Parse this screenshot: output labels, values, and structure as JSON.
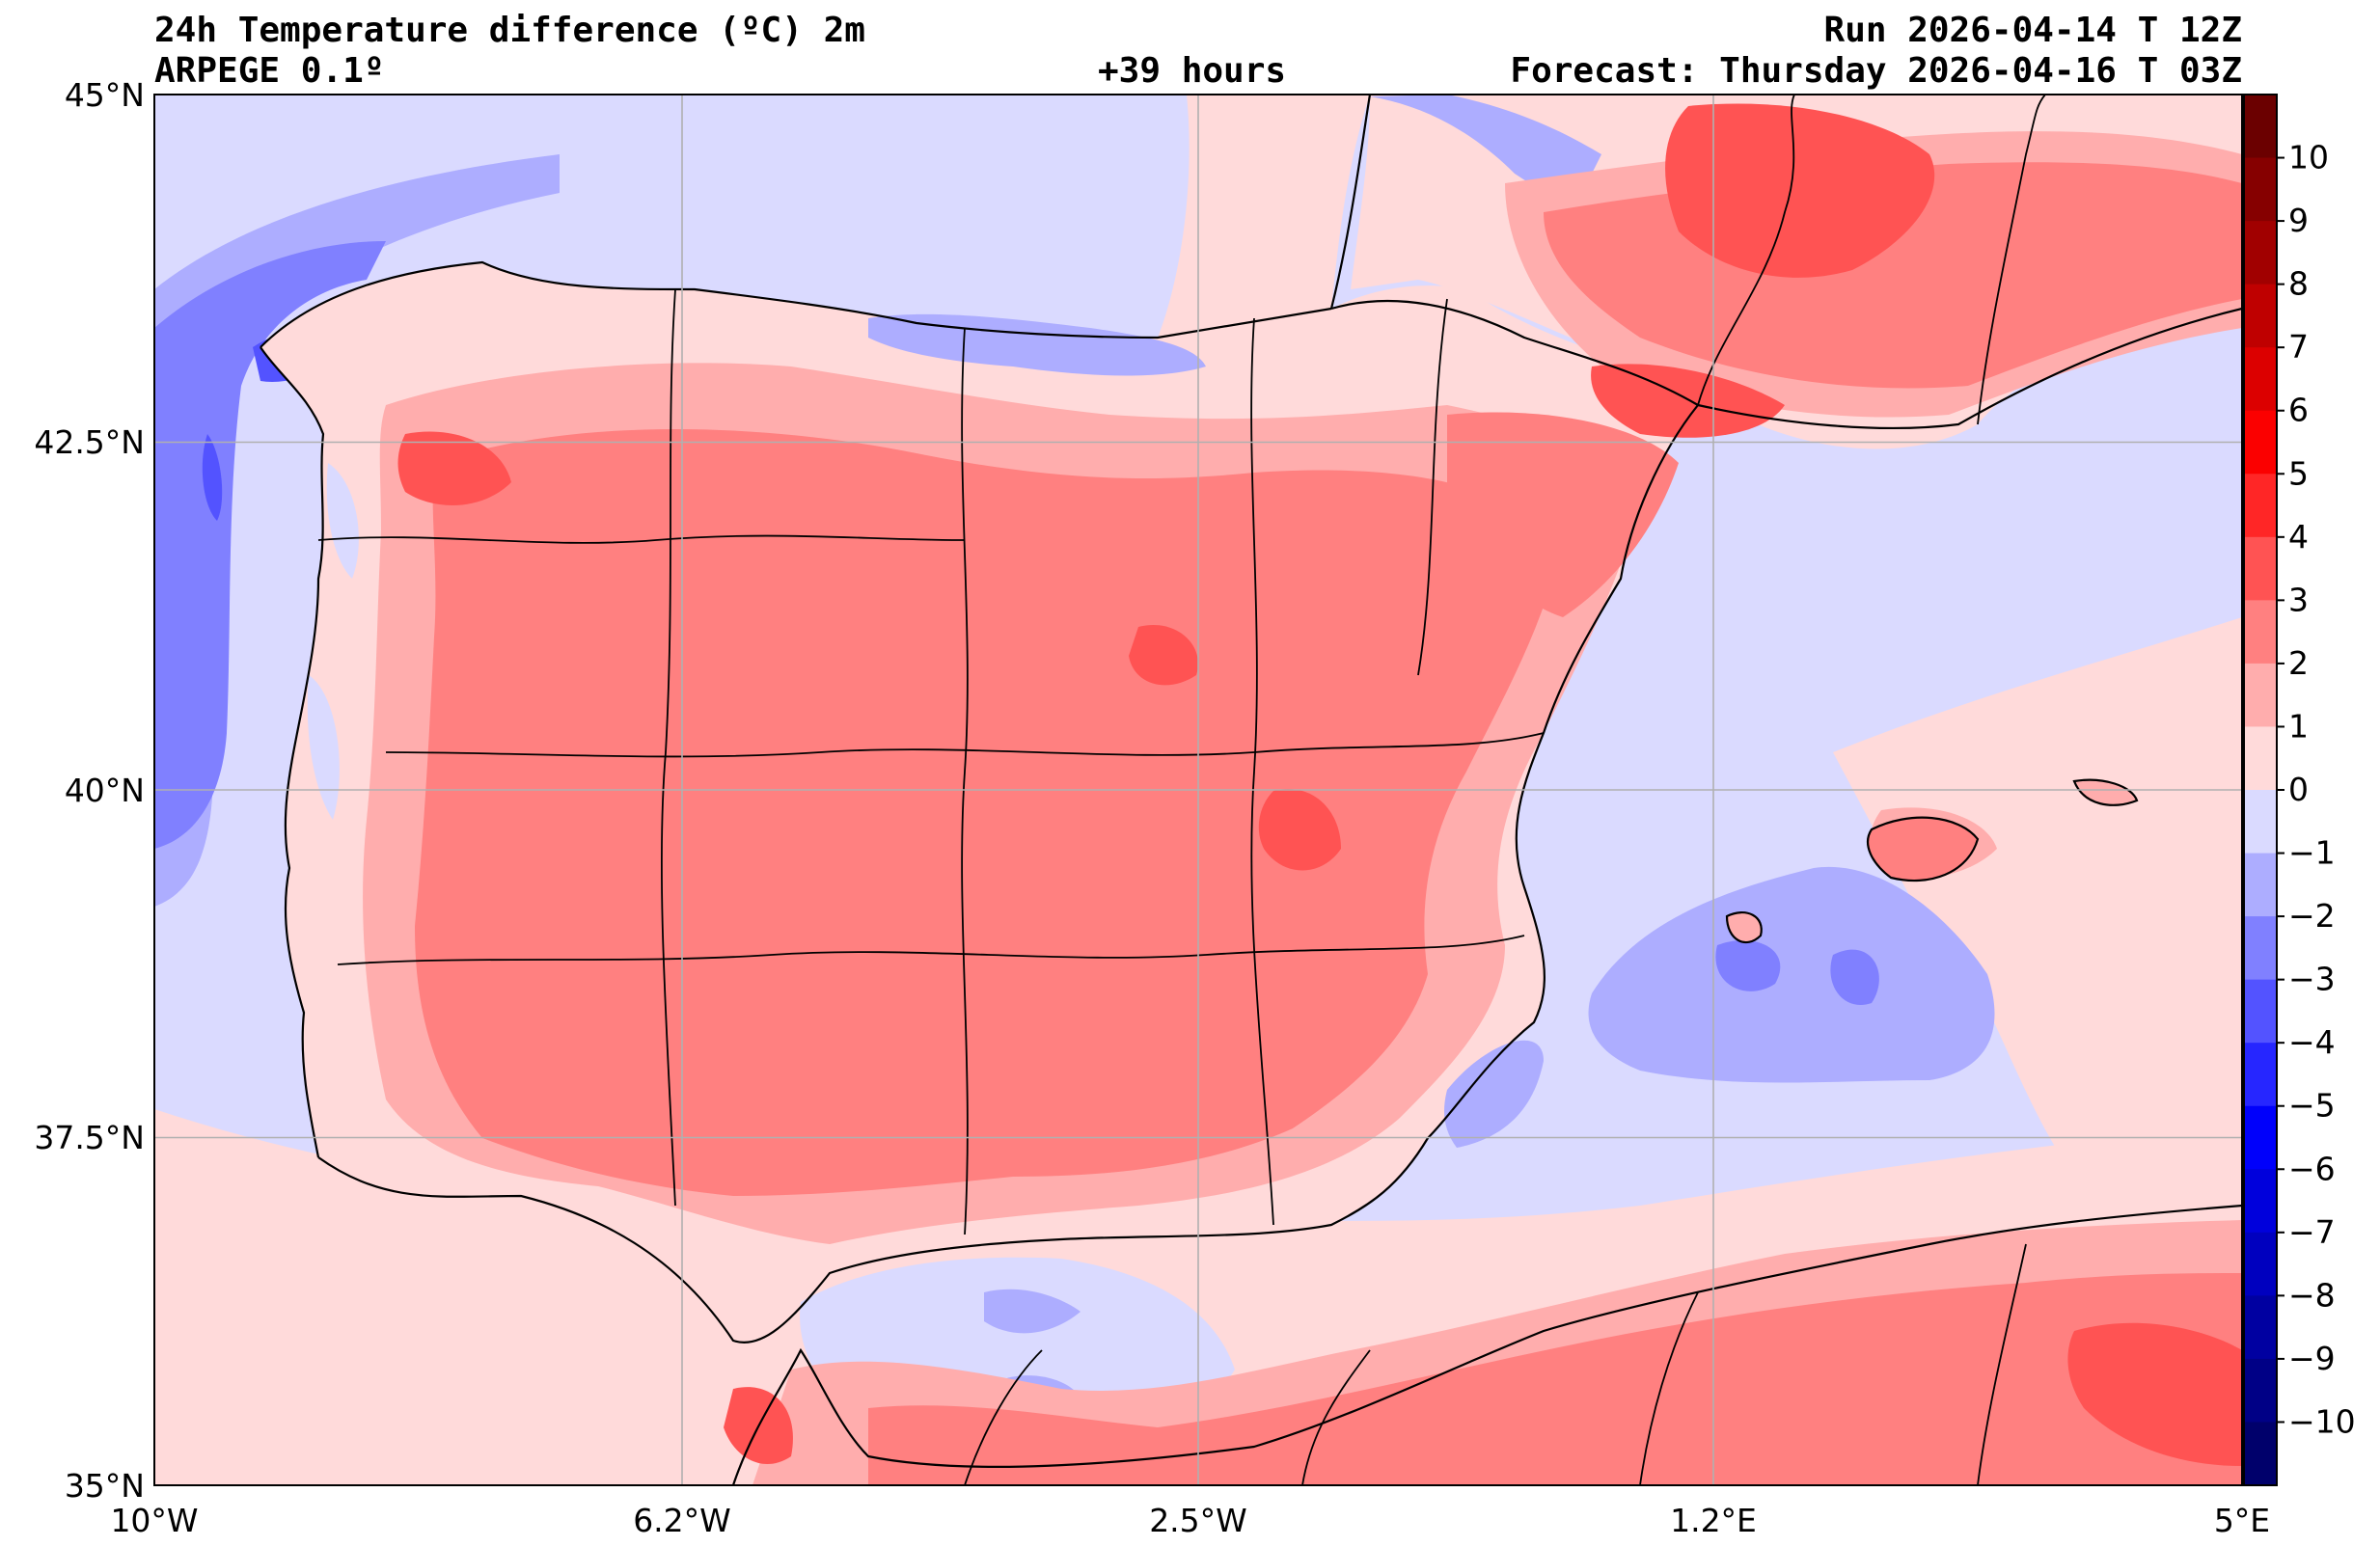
{
  "header": {
    "title": "24h Temperature difference (ºC) 2m",
    "model": "ARPEGE 0.1º",
    "lead_time": "+39 hours",
    "run": "Run 2026-04-14 T 12Z",
    "forecast": "Forecast: Thursday 2026-04-16 T 03Z"
  },
  "axes": {
    "lat_labels": [
      "45°N",
      "42.5°N",
      "40°N",
      "37.5°N",
      "35°N"
    ],
    "lon_labels": [
      "10°W",
      "6.2°W",
      "2.5°W",
      "1.2°E",
      "5°E"
    ]
  },
  "colorbar": {
    "labels": [
      "10",
      "9",
      "8",
      "7",
      "6",
      "5",
      "4",
      "3",
      "2",
      "1",
      "0",
      "−1",
      "−2",
      "−3",
      "−4",
      "−5",
      "−6",
      "−7",
      "−8",
      "−9",
      "−10"
    ],
    "colors": [
      "#6b0000",
      "#860000",
      "#a10000",
      "#bf0000",
      "#dc0000",
      "#fb0000",
      "#ff2626",
      "#ff5353",
      "#ff8080",
      "#ffadad",
      "#ffdada",
      "#dadaff",
      "#adadff",
      "#8080ff",
      "#5353ff",
      "#2626ff",
      "#0000fb",
      "#0000dc",
      "#0000bf",
      "#0000a1",
      "#000086",
      "#00006b"
    ]
  },
  "colors": {
    "sea_cool": "#dadaff",
    "land_warm": "#ffdada",
    "warm_1": "#ffadad",
    "warm_2": "#ff8080",
    "warm_3": "#ff5353",
    "cool_2": "#adadff",
    "cool_3": "#8080ff",
    "cool_4": "#5353ff",
    "border": "#000000",
    "grid": "#b0b0b0"
  }
}
